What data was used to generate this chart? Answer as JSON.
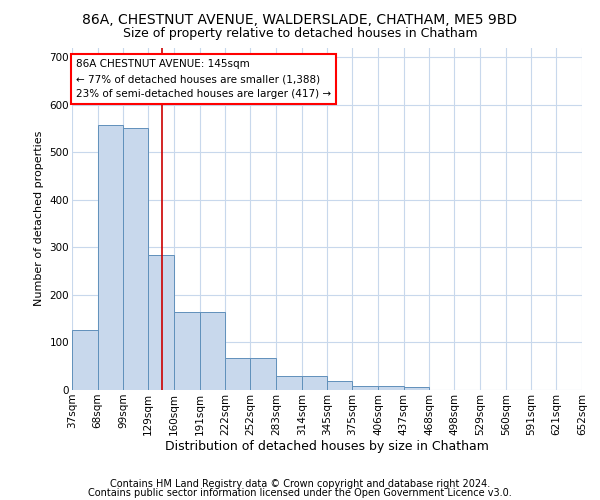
{
  "title_line1": "86A, CHESTNUT AVENUE, WALDERSLADE, CHATHAM, ME5 9BD",
  "title_line2": "Size of property relative to detached houses in Chatham",
  "xlabel": "Distribution of detached houses by size in Chatham",
  "ylabel": "Number of detached properties",
  "footnote1": "Contains HM Land Registry data © Crown copyright and database right 2024.",
  "footnote2": "Contains public sector information licensed under the Open Government Licence v3.0.",
  "annotation_line1": "86A CHESTNUT AVENUE: 145sqm",
  "annotation_line2": "← 77% of detached houses are smaller (1,388)",
  "annotation_line3": "23% of semi-detached houses are larger (417) →",
  "bar_color": "#c8d8ec",
  "bar_edge_color": "#6090bb",
  "vline_color": "#cc0000",
  "vline_x": 145,
  "bin_edges": [
    37,
    68,
    99,
    129,
    160,
    191,
    222,
    252,
    283,
    314,
    345,
    375,
    406,
    437,
    468,
    498,
    529,
    560,
    591,
    621,
    652
  ],
  "bar_heights": [
    127,
    557,
    550,
    283,
    165,
    165,
    68,
    68,
    30,
    30,
    19,
    8,
    8,
    6,
    0,
    0,
    0,
    0,
    0,
    0
  ],
  "ylim": [
    0,
    720
  ],
  "yticks": [
    0,
    100,
    200,
    300,
    400,
    500,
    600,
    700
  ],
  "background_color": "#ffffff",
  "grid_color": "#c8d8ec",
  "title_fontsize": 10,
  "subtitle_fontsize": 9,
  "ylabel_fontsize": 8,
  "xlabel_fontsize": 9,
  "tick_fontsize": 7.5,
  "footnote_fontsize": 7
}
